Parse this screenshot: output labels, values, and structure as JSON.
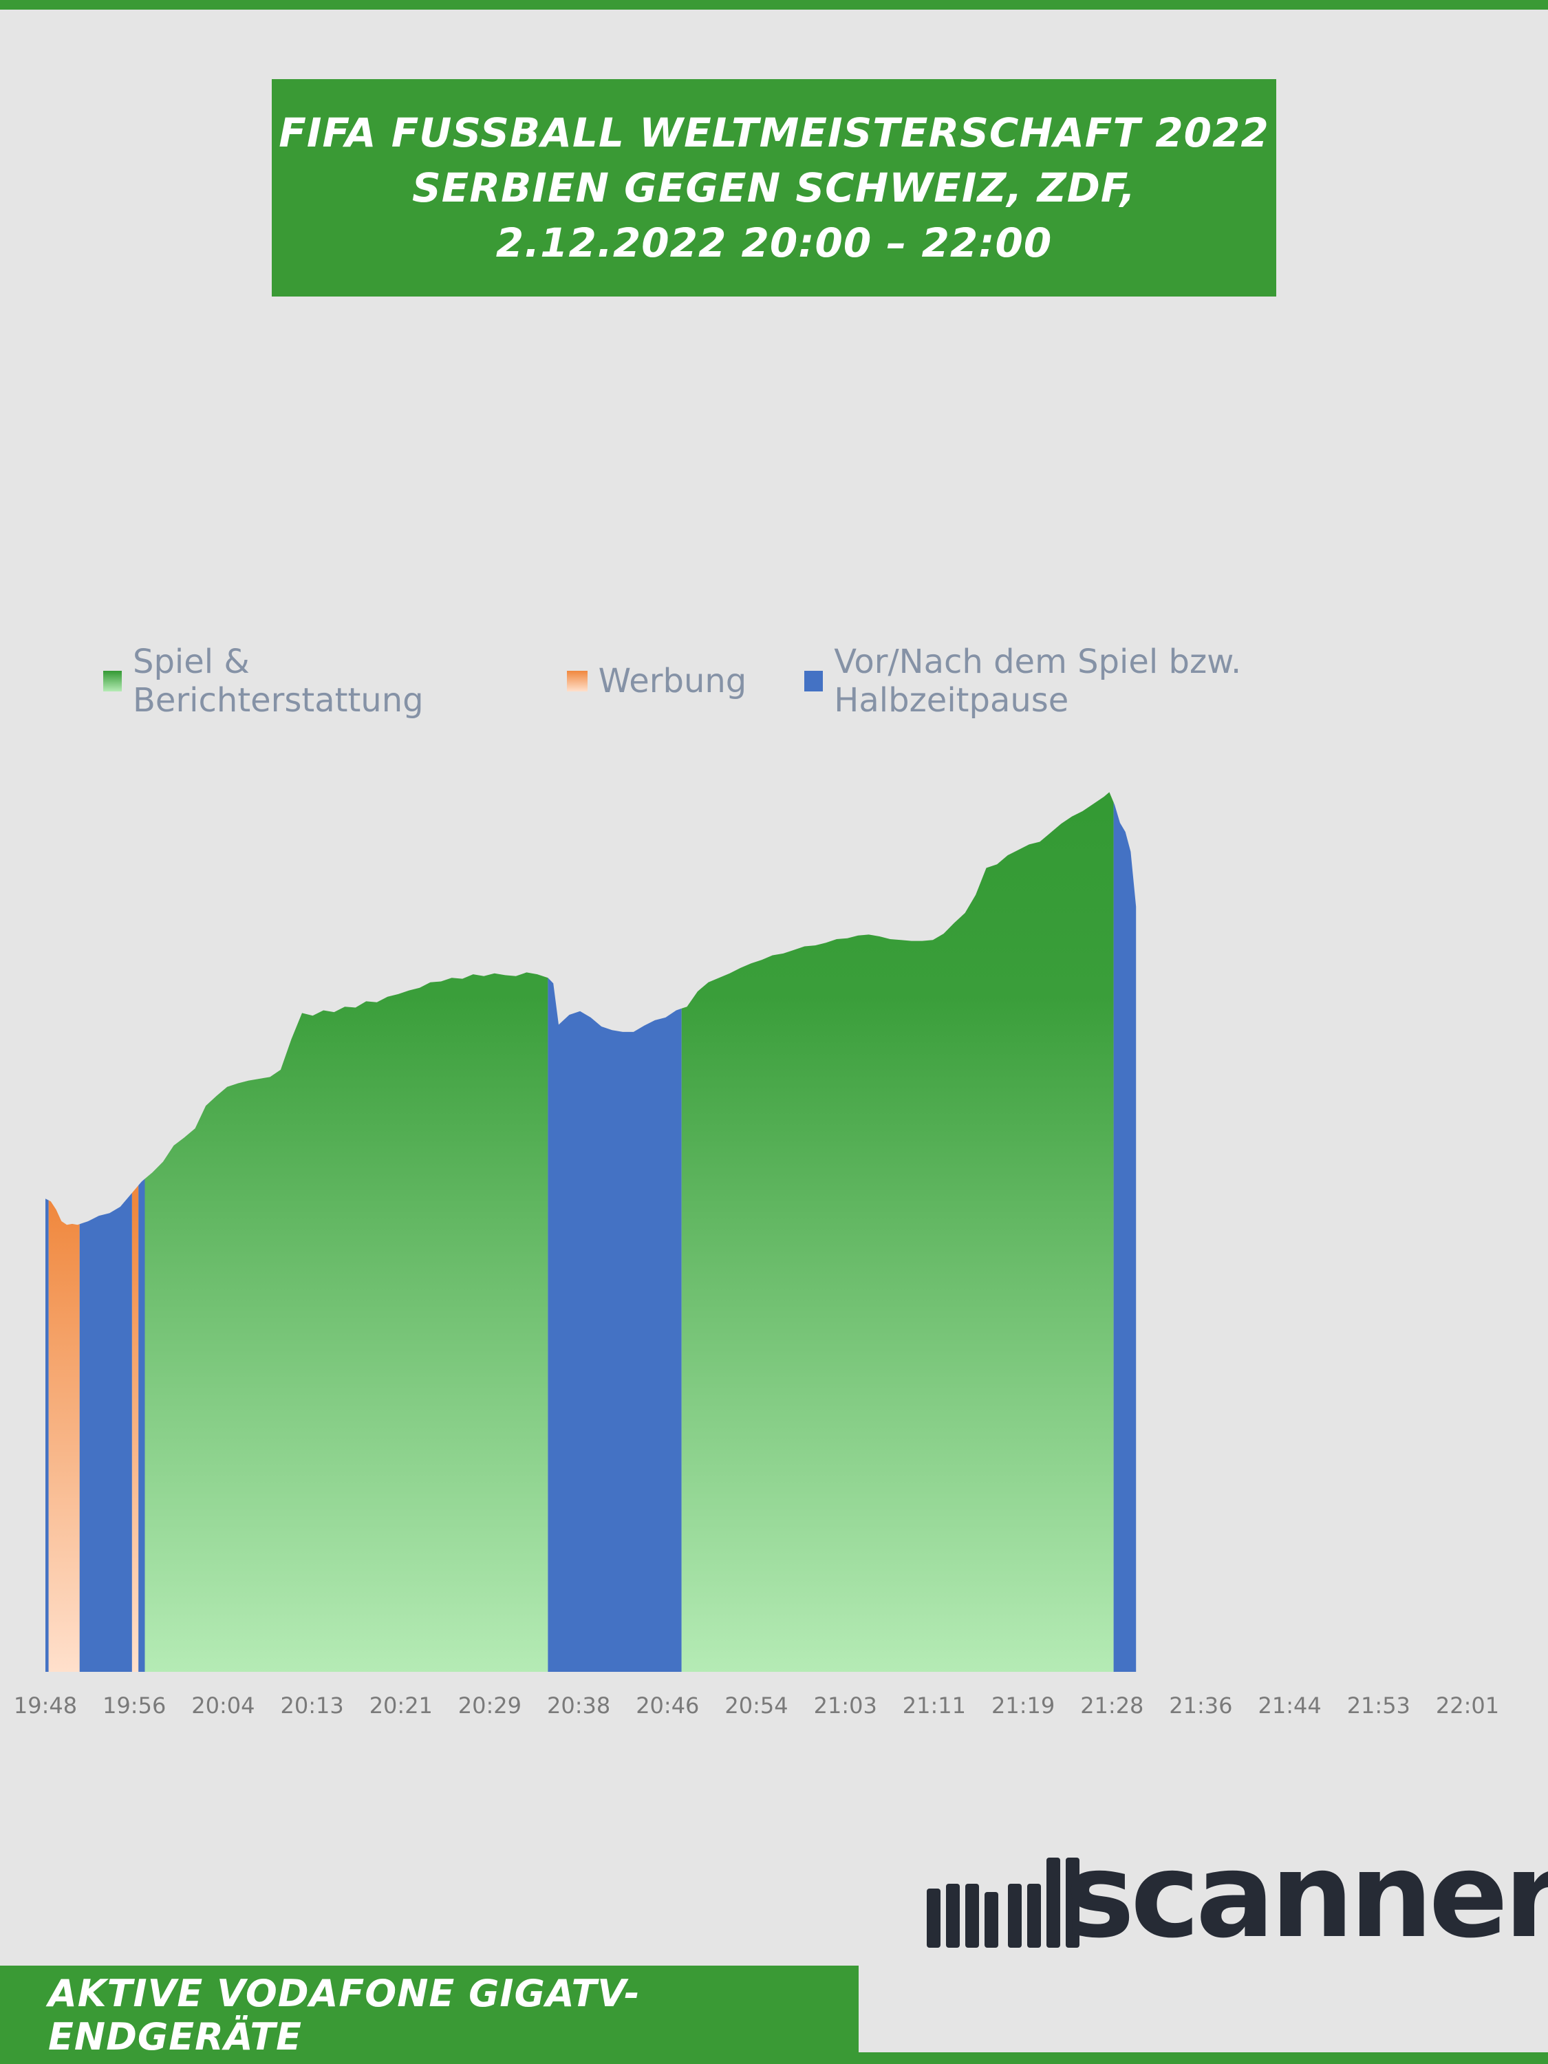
{
  "header": {
    "title_lines": [
      "FIFA FUSSBALL WELTMEISTERSCHAFT 2022",
      "SERBIEN GEGEN SCHWEIZ, ZDF,",
      "2.12.2022 20:00 – 22:00"
    ]
  },
  "footer": {
    "label": "AKTIVE VODAFONE GIGATV-ENDGERÄTE"
  },
  "logo": {
    "text": "adscanner"
  },
  "colors": {
    "brand_green": "#3a9a35",
    "green_top": "#339933",
    "green_bottom": "#b5ebb5",
    "orange_top": "#f0883e",
    "orange_bottom": "#ffe0cc",
    "blue": "#4472c4",
    "logo_dark": "#262b35"
  },
  "chart_data": {
    "type": "area",
    "title": "",
    "xlabel": "",
    "ylabel": "",
    "y_axis_labels": false,
    "grid": false,
    "legend_position": "top",
    "legend": [
      {
        "name": "Spiel & Berichterstattung",
        "color": "#3a9a35",
        "icon": "gradient-square-green"
      },
      {
        "name": "Werbung",
        "color": "#f0883e",
        "icon": "gradient-square-orange"
      },
      {
        "name": "Vor/Nach dem Spiel bzw. Halbzeitpause",
        "color": "#4472c4",
        "icon": "square-blue"
      }
    ],
    "x_tick_labels": [
      "19:48",
      "19:56",
      "20:04",
      "20:13",
      "20:21",
      "20:29",
      "20:38",
      "20:46",
      "20:54",
      "21:03",
      "21:11",
      "21:19",
      "21:28",
      "21:36",
      "21:44",
      "21:53",
      "22:01"
    ],
    "x_range_minutes": [
      0,
      133
    ],
    "x_unit": "minutes after 19:48",
    "y_range": [
      0,
      100
    ],
    "y_unit": "relative audience (unlabeled axis)",
    "series": [
      {
        "x": 0,
        "y": 52.5
      },
      {
        "x": 0.5,
        "y": 52.2
      },
      {
        "x": 1,
        "y": 51.3
      },
      {
        "x": 1.5,
        "y": 50.0
      },
      {
        "x": 2,
        "y": 49.6
      },
      {
        "x": 2.5,
        "y": 49.7
      },
      {
        "x": 3,
        "y": 49.6
      },
      {
        "x": 3.5,
        "y": 49.8
      },
      {
        "x": 4,
        "y": 50.0
      },
      {
        "x": 5,
        "y": 50.6
      },
      {
        "x": 6,
        "y": 50.9
      },
      {
        "x": 7,
        "y": 51.6
      },
      {
        "x": 8,
        "y": 53.0
      },
      {
        "x": 9,
        "y": 54.4
      },
      {
        "x": 10,
        "y": 55.4
      },
      {
        "x": 11,
        "y": 56.6
      },
      {
        "x": 12,
        "y": 58.4
      },
      {
        "x": 13,
        "y": 59.3
      },
      {
        "x": 14,
        "y": 60.3
      },
      {
        "x": 15,
        "y": 62.8
      },
      {
        "x": 16,
        "y": 63.9
      },
      {
        "x": 17,
        "y": 64.9
      },
      {
        "x": 18,
        "y": 65.3
      },
      {
        "x": 19,
        "y": 65.6
      },
      {
        "x": 20,
        "y": 65.8
      },
      {
        "x": 21,
        "y": 66.0
      },
      {
        "x": 22,
        "y": 66.8
      },
      {
        "x": 23,
        "y": 70.2
      },
      {
        "x": 24,
        "y": 73.1
      },
      {
        "x": 25,
        "y": 72.8
      },
      {
        "x": 26,
        "y": 73.4
      },
      {
        "x": 27,
        "y": 73.2
      },
      {
        "x": 28,
        "y": 73.8
      },
      {
        "x": 29,
        "y": 73.7
      },
      {
        "x": 30,
        "y": 74.4
      },
      {
        "x": 31,
        "y": 74.3
      },
      {
        "x": 32,
        "y": 74.9
      },
      {
        "x": 33,
        "y": 75.2
      },
      {
        "x": 34,
        "y": 75.6
      },
      {
        "x": 35,
        "y": 75.9
      },
      {
        "x": 36,
        "y": 76.5
      },
      {
        "x": 37,
        "y": 76.6
      },
      {
        "x": 38,
        "y": 77.0
      },
      {
        "x": 39,
        "y": 76.9
      },
      {
        "x": 40,
        "y": 77.4
      },
      {
        "x": 41,
        "y": 77.2
      },
      {
        "x": 42,
        "y": 77.5
      },
      {
        "x": 43,
        "y": 77.3
      },
      {
        "x": 44,
        "y": 77.2
      },
      {
        "x": 45,
        "y": 77.6
      },
      {
        "x": 46,
        "y": 77.4
      },
      {
        "x": 47,
        "y": 77.0
      },
      {
        "x": 47.5,
        "y": 76.4
      },
      {
        "x": 48,
        "y": 71.8
      },
      {
        "x": 49,
        "y": 72.9
      },
      {
        "x": 50,
        "y": 73.3
      },
      {
        "x": 51,
        "y": 72.6
      },
      {
        "x": 52,
        "y": 71.6
      },
      {
        "x": 53,
        "y": 71.2
      },
      {
        "x": 54,
        "y": 71.0
      },
      {
        "x": 55,
        "y": 71.0
      },
      {
        "x": 56,
        "y": 71.7
      },
      {
        "x": 57,
        "y": 72.3
      },
      {
        "x": 58,
        "y": 72.6
      },
      {
        "x": 59,
        "y": 73.4
      },
      {
        "x": 60,
        "y": 73.8
      },
      {
        "x": 61,
        "y": 75.5
      },
      {
        "x": 62,
        "y": 76.5
      },
      {
        "x": 63,
        "y": 77.0
      },
      {
        "x": 64,
        "y": 77.5
      },
      {
        "x": 65,
        "y": 78.1
      },
      {
        "x": 66,
        "y": 78.6
      },
      {
        "x": 67,
        "y": 79.0
      },
      {
        "x": 68,
        "y": 79.5
      },
      {
        "x": 69,
        "y": 79.7
      },
      {
        "x": 70,
        "y": 80.1
      },
      {
        "x": 71,
        "y": 80.5
      },
      {
        "x": 72,
        "y": 80.6
      },
      {
        "x": 73,
        "y": 80.9
      },
      {
        "x": 74,
        "y": 81.3
      },
      {
        "x": 75,
        "y": 81.4
      },
      {
        "x": 76,
        "y": 81.7
      },
      {
        "x": 77,
        "y": 81.8
      },
      {
        "x": 78,
        "y": 81.6
      },
      {
        "x": 79,
        "y": 81.3
      },
      {
        "x": 80,
        "y": 81.2
      },
      {
        "x": 81,
        "y": 81.1
      },
      {
        "x": 82,
        "y": 81.1
      },
      {
        "x": 83,
        "y": 81.2
      },
      {
        "x": 84,
        "y": 81.9
      },
      {
        "x": 85,
        "y": 83.1
      },
      {
        "x": 86,
        "y": 84.2
      },
      {
        "x": 87,
        "y": 86.2
      },
      {
        "x": 88,
        "y": 89.2
      },
      {
        "x": 89,
        "y": 89.6
      },
      {
        "x": 90,
        "y": 90.6
      },
      {
        "x": 91,
        "y": 91.2
      },
      {
        "x": 92,
        "y": 91.8
      },
      {
        "x": 93,
        "y": 92.1
      },
      {
        "x": 94,
        "y": 93.1
      },
      {
        "x": 95,
        "y": 94.1
      },
      {
        "x": 96,
        "y": 94.9
      },
      {
        "x": 97,
        "y": 95.5
      },
      {
        "x": 98,
        "y": 96.3
      },
      {
        "x": 99,
        "y": 97.1
      },
      {
        "x": 99.5,
        "y": 97.6
      },
      {
        "x": 100,
        "y": 96.2
      },
      {
        "x": 100.5,
        "y": 94.2
      },
      {
        "x": 101,
        "y": 93.2
      },
      {
        "x": 101.5,
        "y": 91.0
      },
      {
        "x": 102,
        "y": 84.9
      }
    ],
    "segments": [
      {
        "category": "Vor/Nach dem Spiel bzw. Halbzeitpause",
        "from": 0,
        "to": 0.3
      },
      {
        "category": "Werbung",
        "from": 0.3,
        "to": 3.2
      },
      {
        "category": "Vor/Nach dem Spiel bzw. Halbzeitpause",
        "from": 3.2,
        "to": 8.1
      },
      {
        "category": "Werbung",
        "from": 8.1,
        "to": 8.7
      },
      {
        "category": "Vor/Nach dem Spiel bzw. Halbzeitpause",
        "from": 8.7,
        "to": 9.3
      },
      {
        "category": "Spiel & Berichterstattung",
        "from": 9.3,
        "to": 47.0
      },
      {
        "category": "Vor/Nach dem Spiel bzw. Halbzeitpause",
        "from": 47.0,
        "to": 59.5
      },
      {
        "category": "Spiel & Berichterstattung",
        "from": 59.5,
        "to": 99.9
      },
      {
        "category": "Vor/Nach dem Spiel bzw. Halbzeitpause",
        "from": 99.9,
        "to": 102.0
      }
    ]
  }
}
